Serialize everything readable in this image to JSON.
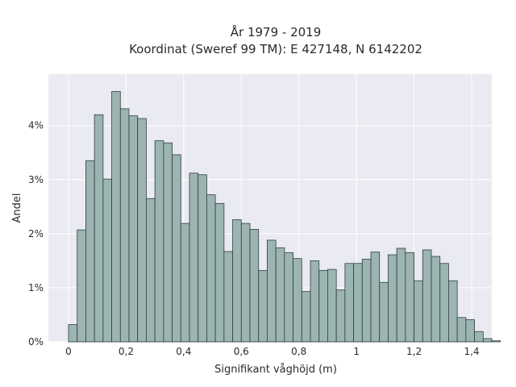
{
  "chart_data": {
    "type": "bar",
    "title_lines": [
      "År 1979 - 2019",
      "Koordinat (Sweref 99 TM): E 427148, N 6142202"
    ],
    "xlabel": "Signifikant våghöjd (m)",
    "ylabel": "Andel",
    "x_tick_labels": [
      "0",
      "0,2",
      "0,4",
      "0,6",
      "0,8",
      "1",
      "1,2",
      "1,4"
    ],
    "x_ticks": [
      0,
      0.2,
      0.4,
      0.6,
      0.8,
      1.0,
      1.2,
      1.4
    ],
    "y_tick_labels": [
      "0%",
      "1%",
      "2%",
      "3%",
      "4%"
    ],
    "y_ticks": [
      0,
      1,
      2,
      3,
      4
    ],
    "xlim": [
      -0.07,
      1.47
    ],
    "ylim": [
      0,
      4.95
    ],
    "bin_width": 0.03,
    "bin_start": 0,
    "values": [
      0.32,
      2.07,
      3.35,
      4.2,
      3.01,
      4.63,
      4.31,
      4.18,
      4.13,
      2.65,
      3.72,
      3.68,
      3.46,
      2.19,
      3.12,
      3.09,
      2.72,
      2.56,
      1.67,
      2.26,
      2.19,
      2.08,
      1.32,
      1.88,
      1.74,
      1.65,
      1.54,
      0.93,
      1.5,
      1.32,
      1.34,
      0.96,
      1.45,
      1.45,
      1.53,
      1.66,
      1.1,
      1.61,
      1.73,
      1.65,
      1.13,
      1.7,
      1.58,
      1.45,
      1.13,
      0.45,
      0.41,
      0.19,
      0.06,
      0.02
    ],
    "grid": true,
    "colors": {
      "bar_fill": "#9cb4b2",
      "bar_edge": "#2f3f3e",
      "plot_background": "#eaeaf2",
      "grid": "#ffffff"
    }
  }
}
